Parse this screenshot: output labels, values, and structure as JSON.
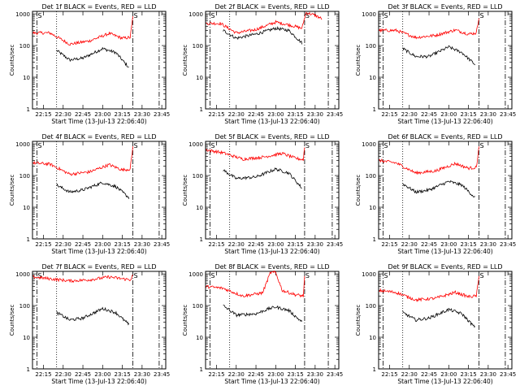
{
  "chart_data": [
    {
      "type": "line",
      "title": "Det 1f BLACK = Events, RED = LLD",
      "xlabel": "Start Time (13-Jul-13 22:06:40)",
      "ylabel": "Counts/sec",
      "xlim": [
        "22:06:40",
        "23:48:00"
      ],
      "ylim": [
        1,
        1200
      ],
      "yscale": "log",
      "xticks": [
        "22:15",
        "22:30",
        "22:45",
        "23:00",
        "23:15",
        "23:30",
        "23:45"
      ],
      "yticks": [
        "1",
        "10",
        "100",
        "1000"
      ],
      "dotted_line": "22:25",
      "dashdot_lines": [
        "22:10",
        "23:23",
        "23:43"
      ],
      "markers": [
        {
          "time": "22:10",
          "text": "S"
        },
        {
          "time": "23:23",
          "text": "S"
        }
      ],
      "series": [
        {
          "color": "#000000",
          "x": [
            "22:25",
            "22:35",
            "22:45",
            "23:00",
            "23:10",
            "23:20"
          ],
          "values": [
            70,
            35,
            40,
            80,
            60,
            20
          ]
        },
        {
          "color": "#ff0000",
          "x": [
            "22:07",
            "22:20",
            "22:35",
            "22:50",
            "23:05",
            "23:15",
            "23:21",
            "23:23"
          ],
          "values": [
            250,
            250,
            110,
            140,
            240,
            170,
            180,
            800
          ]
        }
      ]
    },
    {
      "type": "line",
      "title": "Det 2f BLACK = Events, RED = LLD",
      "xlabel": "Start Time (13-Jul-13 22:06:40)",
      "ylabel": "Counts/sec",
      "xlim": [
        "22:06:40",
        "23:48:00"
      ],
      "ylim": [
        1,
        1200
      ],
      "yscale": "log",
      "xticks": [
        "22:15",
        "22:30",
        "22:45",
        "23:00",
        "23:15",
        "23:30",
        "23:45"
      ],
      "yticks": [
        "1",
        "10",
        "100",
        "1000"
      ],
      "dotted_line": "22:25",
      "dashdot_lines": [
        "22:10",
        "23:22",
        "23:40"
      ],
      "markers": [
        {
          "time": "22:10",
          "text": "S"
        },
        {
          "time": "23:22",
          "text": "S"
        }
      ],
      "series": [
        {
          "color": "#000000",
          "x": [
            "22:20",
            "22:30",
            "22:45",
            "23:00",
            "23:10",
            "23:20"
          ],
          "values": [
            300,
            170,
            230,
            350,
            300,
            120
          ]
        },
        {
          "color": "#ff0000",
          "x": [
            "22:07",
            "22:18",
            "22:30",
            "22:45",
            "23:00",
            "23:10",
            "23:20",
            "23:23",
            "23:30",
            "23:35"
          ],
          "values": [
            500,
            500,
            250,
            320,
            550,
            450,
            350,
            1100,
            900,
            700
          ]
        }
      ]
    },
    {
      "type": "line",
      "title": "Det 3f BLACK = Events, RED = LLD",
      "xlabel": "Start Time (13-Jul-13 22:06:40)",
      "ylabel": "Counts/sec",
      "xlim": [
        "22:06:40",
        "23:48:00"
      ],
      "ylim": [
        1,
        1200
      ],
      "yscale": "log",
      "xticks": [
        "22:15",
        "22:30",
        "22:45",
        "23:00",
        "23:15",
        "23:30",
        "23:45"
      ],
      "yticks": [
        "1",
        "10",
        "100",
        "1000"
      ],
      "dotted_line": "22:25",
      "dashdot_lines": [
        "22:10",
        "23:23",
        "23:43"
      ],
      "markers": [
        {
          "time": "22:10",
          "text": "S"
        },
        {
          "time": "23:23",
          "text": "S"
        }
      ],
      "series": [
        {
          "color": "#000000",
          "x": [
            "22:25",
            "22:35",
            "22:45",
            "23:00",
            "23:10",
            "23:20"
          ],
          "values": [
            80,
            45,
            45,
            90,
            60,
            25
          ]
        },
        {
          "color": "#ff0000",
          "x": [
            "22:07",
            "22:20",
            "22:35",
            "22:50",
            "23:05",
            "23:15",
            "23:21",
            "23:23"
          ],
          "values": [
            300,
            300,
            180,
            210,
            310,
            230,
            250,
            800
          ]
        }
      ]
    },
    {
      "type": "line",
      "title": "Det 4f BLACK = Events, RED = LLD",
      "xlabel": "Start Time (13-Jul-13 22:06:40)",
      "ylabel": "Counts/sec",
      "xlim": [
        "22:06:40",
        "23:48:00"
      ],
      "ylim": [
        1,
        1200
      ],
      "yscale": "log",
      "xticks": [
        "22:15",
        "22:30",
        "22:45",
        "23:00",
        "23:15",
        "23:30",
        "23:45"
      ],
      "yticks": [
        "1",
        "10",
        "100",
        "1000"
      ],
      "dotted_line": "22:25",
      "dashdot_lines": [
        "22:10",
        "23:23",
        "23:43"
      ],
      "markers": [
        {
          "time": "22:10",
          "text": "S"
        },
        {
          "time": "23:23",
          "text": "S"
        }
      ],
      "series": [
        {
          "color": "#000000",
          "x": [
            "22:25",
            "22:35",
            "22:45",
            "23:00",
            "23:10",
            "23:20"
          ],
          "values": [
            50,
            30,
            35,
            60,
            45,
            20
          ]
        },
        {
          "color": "#ff0000",
          "x": [
            "22:07",
            "22:20",
            "22:35",
            "22:50",
            "23:05",
            "23:15",
            "23:21",
            "23:23"
          ],
          "values": [
            250,
            230,
            110,
            130,
            220,
            150,
            160,
            800
          ]
        }
      ]
    },
    {
      "type": "line",
      "title": "Det 5f BLACK = Events, RED = LLD",
      "xlabel": "Start Time (13-Jul-13 22:06:40)",
      "ylabel": "Counts/sec",
      "xlim": [
        "22:06:40",
        "23:48:00"
      ],
      "ylim": [
        1,
        1200
      ],
      "yscale": "log",
      "xticks": [
        "22:15",
        "22:30",
        "22:45",
        "23:00",
        "23:15",
        "23:30",
        "23:45"
      ],
      "yticks": [
        "1",
        "10",
        "100",
        "1000"
      ],
      "dotted_line": "22:25",
      "dashdot_lines": [
        "22:10",
        "23:22",
        "23:43"
      ],
      "markers": [
        {
          "time": "22:10",
          "text": "S"
        },
        {
          "time": "23:22",
          "text": "S"
        }
      ],
      "series": [
        {
          "color": "#000000",
          "x": [
            "22:20",
            "22:30",
            "22:45",
            "23:00",
            "23:10",
            "23:20"
          ],
          "values": [
            150,
            80,
            90,
            160,
            120,
            40
          ]
        },
        {
          "color": "#ff0000",
          "x": [
            "22:07",
            "22:20",
            "22:35",
            "22:50",
            "23:05",
            "23:15",
            "23:21",
            "23:22"
          ],
          "values": [
            650,
            520,
            330,
            380,
            500,
            350,
            320,
            800
          ]
        }
      ]
    },
    {
      "type": "line",
      "title": "Det 6f BLACK = Events, RED = LLD",
      "xlabel": "Start Time (13-Jul-13 22:06:40)",
      "ylabel": "Counts/sec",
      "xlim": [
        "22:06:40",
        "23:48:00"
      ],
      "ylim": [
        1,
        1200
      ],
      "yscale": "log",
      "xticks": [
        "22:15",
        "22:30",
        "22:45",
        "23:00",
        "23:15",
        "23:30",
        "23:45"
      ],
      "yticks": [
        "1",
        "10",
        "100",
        "1000"
      ],
      "dotted_line": "22:25",
      "dashdot_lines": [
        "22:10",
        "23:23",
        "23:43"
      ],
      "markers": [
        {
          "time": "22:10",
          "text": "S"
        },
        {
          "time": "23:23",
          "text": "S"
        }
      ],
      "series": [
        {
          "color": "#000000",
          "x": [
            "22:25",
            "22:35",
            "22:45",
            "23:00",
            "23:10",
            "23:20"
          ],
          "values": [
            55,
            30,
            35,
            65,
            50,
            20
          ]
        },
        {
          "color": "#ff0000",
          "x": [
            "22:07",
            "22:20",
            "22:35",
            "22:50",
            "23:05",
            "23:15",
            "23:21",
            "23:23"
          ],
          "values": [
            300,
            250,
            120,
            140,
            240,
            170,
            180,
            800
          ]
        }
      ]
    },
    {
      "type": "line",
      "title": "Det 7f BLACK = Events, RED = LLD",
      "xlabel": "Start Time (13-Jul-13 22:06:40)",
      "ylabel": "Counts/sec",
      "xlim": [
        "22:06:40",
        "23:48:00"
      ],
      "ylim": [
        1,
        1200
      ],
      "yscale": "log",
      "xticks": [
        "22:15",
        "22:30",
        "22:45",
        "23:00",
        "23:15",
        "23:30",
        "23:45"
      ],
      "yticks": [
        "1",
        "10",
        "100",
        "1000"
      ],
      "dotted_line": "22:25",
      "dashdot_lines": [
        "22:10",
        "23:23",
        "23:43"
      ],
      "markers": [
        {
          "time": "22:10",
          "text": "S"
        },
        {
          "time": "23:23",
          "text": "S"
        }
      ],
      "series": [
        {
          "color": "#000000",
          "x": [
            "22:25",
            "22:35",
            "22:45",
            "23:00",
            "23:10",
            "23:20"
          ],
          "values": [
            60,
            35,
            40,
            80,
            60,
            25
          ]
        },
        {
          "color": "#ff0000",
          "x": [
            "22:07",
            "22:20",
            "22:35",
            "22:50",
            "23:05",
            "23:15",
            "23:21",
            "23:23"
          ],
          "values": [
            800,
            700,
            600,
            650,
            800,
            700,
            650,
            900
          ]
        }
      ]
    },
    {
      "type": "line",
      "title": "Det 8f BLACK = Events, RED = LLD",
      "xlabel": "Start Time (13-Jul-13 22:06:40)",
      "ylabel": "Counts/sec",
      "xlim": [
        "22:06:40",
        "23:48:00"
      ],
      "ylim": [
        1,
        1200
      ],
      "yscale": "log",
      "xticks": [
        "22:15",
        "22:30",
        "22:45",
        "23:00",
        "23:15",
        "23:30",
        "23:45"
      ],
      "yticks": [
        "1",
        "10",
        "100",
        "1000"
      ],
      "dotted_line": "22:25",
      "dashdot_lines": [
        "22:10",
        "23:22",
        "23:40"
      ],
      "markers": [
        {
          "time": "22:10",
          "text": "S"
        },
        {
          "time": "23:22",
          "text": "S"
        }
      ],
      "series": [
        {
          "color": "#000000",
          "x": [
            "22:20",
            "22:30",
            "22:45",
            "22:55",
            "23:00",
            "23:10",
            "23:20"
          ],
          "values": [
            100,
            50,
            55,
            80,
            90,
            70,
            30
          ]
        },
        {
          "color": "#ff0000",
          "x": [
            "22:07",
            "22:20",
            "22:35",
            "22:50",
            "22:56",
            "23:00",
            "23:05",
            "23:15",
            "23:21",
            "23:22"
          ],
          "values": [
            400,
            350,
            200,
            250,
            1100,
            1100,
            300,
            220,
            200,
            800
          ]
        }
      ]
    },
    {
      "type": "line",
      "title": "Det 9f BLACK = Events, RED = LLD",
      "xlabel": "Start Time (13-Jul-13 22:06:40)",
      "ylabel": "Counts/sec",
      "xlim": [
        "22:06:40",
        "23:48:00"
      ],
      "ylim": [
        1,
        1200
      ],
      "yscale": "log",
      "xticks": [
        "22:15",
        "22:30",
        "22:45",
        "23:00",
        "23:15",
        "23:30",
        "23:45"
      ],
      "yticks": [
        "1",
        "10",
        "100",
        "1000"
      ],
      "dotted_line": "22:25",
      "dashdot_lines": [
        "22:10",
        "23:23",
        "23:43"
      ],
      "markers": [
        {
          "time": "22:10",
          "text": "S"
        },
        {
          "time": "23:23",
          "text": "S"
        }
      ],
      "series": [
        {
          "color": "#000000",
          "x": [
            "22:25",
            "22:35",
            "22:45",
            "23:00",
            "23:10",
            "23:20"
          ],
          "values": [
            60,
            35,
            40,
            75,
            55,
            20
          ]
        },
        {
          "color": "#ff0000",
          "x": [
            "22:07",
            "22:20",
            "22:35",
            "22:50",
            "23:05",
            "23:15",
            "23:21",
            "23:23"
          ],
          "values": [
            300,
            260,
            150,
            170,
            260,
            190,
            200,
            800
          ]
        }
      ]
    }
  ]
}
